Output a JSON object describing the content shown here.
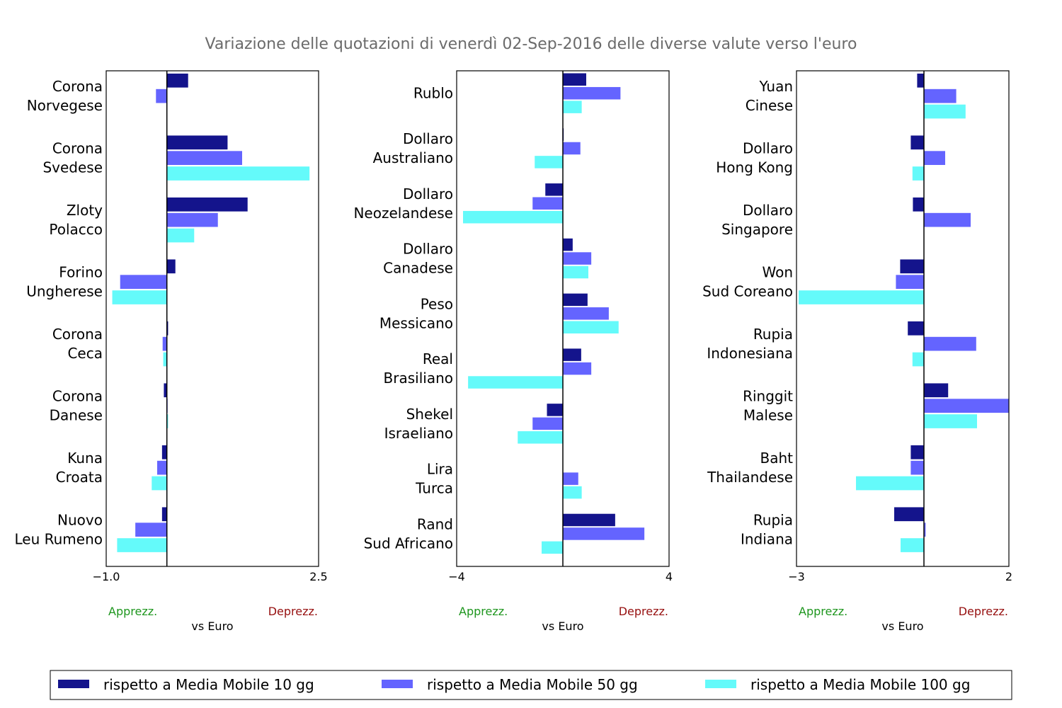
{
  "chart_data": {
    "type": "bar",
    "orientation": "horizontal",
    "title": "Variazione delle quotazioni di venerdì 02-Sep-2016 delle diverse valute verso l'euro",
    "legend": {
      "placement": "bottom",
      "entries": [
        {
          "name": "rispetto a Media Mobile 10 gg",
          "color": "#14148c"
        },
        {
          "name": "rispetto a Media Mobile 50 gg",
          "color": "#6464ff"
        },
        {
          "name": "rispetto a Media Mobile 100 gg",
          "color": "#64fafa"
        }
      ]
    },
    "panels": [
      {
        "xlabel": "vs Euro",
        "label_left": "Apprezz.",
        "label_right": "Deprezz.",
        "label_left_color": "#1e961e",
        "label_right_color": "#960f0f",
        "xlim": [
          -1.0,
          2.5
        ],
        "xticks": [
          "−1.0",
          "2.5"
        ],
        "categories": [
          [
            "Corona",
            "Norvegese"
          ],
          [
            "Corona",
            "Svedese"
          ],
          [
            "Zloty",
            "Polacco"
          ],
          [
            "Forino",
            "Ungherese"
          ],
          [
            "Corona",
            "Ceca"
          ],
          [
            "Corona",
            "Danese"
          ],
          [
            "Kuna",
            "Croata"
          ],
          [
            "Nuovo",
            "Leu Rumeno"
          ]
        ],
        "series": [
          {
            "name": "rispetto a Media Mobile 10 gg",
            "values": [
              0.35,
              1.0,
              1.33,
              0.14,
              0.02,
              -0.05,
              -0.08,
              -0.08
            ]
          },
          {
            "name": "rispetto a Media Mobile 50 gg",
            "values": [
              -0.18,
              1.24,
              0.84,
              -0.77,
              -0.07,
              0.01,
              -0.16,
              -0.52
            ]
          },
          {
            "name": "rispetto a Media Mobile 100 gg",
            "values": [
              0.0,
              2.35,
              0.45,
              -0.9,
              -0.06,
              0.02,
              -0.25,
              -0.82
            ]
          }
        ]
      },
      {
        "xlabel": "vs Euro",
        "label_left": "Apprezz.",
        "label_right": "Deprezz.",
        "label_left_color": "#1e961e",
        "label_right_color": "#960f0f",
        "xlim": [
          -4,
          4
        ],
        "xticks": [
          "−4",
          "4"
        ],
        "categories": [
          [
            "Rublo"
          ],
          [
            "Dollaro",
            "Australiano"
          ],
          [
            "Dollaro",
            "Neozelandese"
          ],
          [
            "Dollaro",
            "Canadese"
          ],
          [
            "Peso",
            "Messicano"
          ],
          [
            "Real",
            "Brasiliano"
          ],
          [
            "Shekel",
            "Israeliano"
          ],
          [
            "Lira",
            "Turca"
          ],
          [
            "Rand",
            "Sud Africano"
          ]
        ],
        "series": [
          {
            "name": "rispetto a Media Mobile 10 gg",
            "values": [
              0.88,
              0.03,
              -0.66,
              0.37,
              0.93,
              0.69,
              -0.6,
              0.0,
              1.97
            ]
          },
          {
            "name": "rispetto a Media Mobile 50 gg",
            "values": [
              2.17,
              0.66,
              -1.14,
              1.07,
              1.73,
              1.07,
              -1.14,
              0.58,
              3.07
            ]
          },
          {
            "name": "rispetto a Media Mobile 100 gg",
            "values": [
              0.71,
              -1.06,
              -3.76,
              0.96,
              2.1,
              -3.57,
              -1.7,
              0.71,
              -0.8
            ]
          }
        ]
      },
      {
        "xlabel": "vs Euro",
        "label_left": "Apprezz.",
        "label_right": "Deprezz.",
        "label_left_color": "#1e961e",
        "label_right_color": "#960f0f",
        "xlim": [
          -3,
          2
        ],
        "xticks": [
          "−3",
          "2"
        ],
        "categories": [
          [
            "Yuan",
            "Cinese"
          ],
          [
            "Dollaro",
            "Hong Kong"
          ],
          [
            "Dollaro",
            "Singapore"
          ],
          [
            "Won",
            "Sud Coreano"
          ],
          [
            "Rupia",
            "Indonesiana"
          ],
          [
            "Ringgit",
            "Malese"
          ],
          [
            "Baht",
            "Thailandese"
          ],
          [
            "Rupia",
            "Indiana"
          ]
        ],
        "series": [
          {
            "name": "rispetto a Media Mobile 10 gg",
            "values": [
              -0.16,
              -0.31,
              -0.26,
              -0.56,
              -0.38,
              0.57,
              -0.31,
              -0.7
            ]
          },
          {
            "name": "rispetto a Media Mobile 50 gg",
            "values": [
              0.76,
              0.5,
              1.1,
              -0.66,
              1.23,
              2.0,
              -0.31,
              0.04
            ]
          },
          {
            "name": "rispetto a Media Mobile 100 gg",
            "values": [
              0.98,
              -0.27,
              0.0,
              -2.95,
              -0.27,
              1.25,
              -1.6,
              -0.55
            ]
          }
        ]
      }
    ]
  }
}
